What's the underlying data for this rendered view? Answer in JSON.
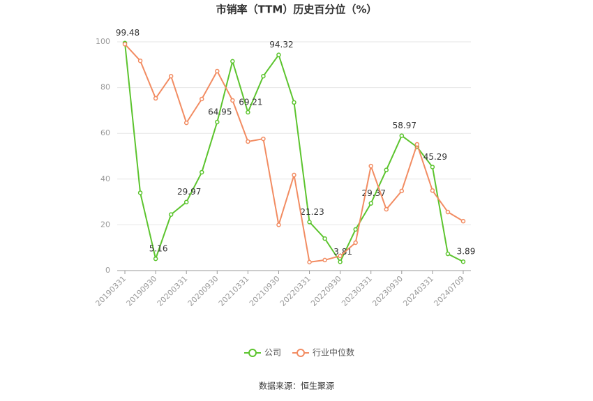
{
  "chart_data": {
    "type": "line",
    "title": "市销率（TTM）历史百分位（%）",
    "source": "数据来源：恒生聚源",
    "categories": [
      "20190331",
      null,
      "20190930",
      null,
      "20200331",
      null,
      "20200930",
      null,
      "20210331",
      null,
      "20210930",
      null,
      "20220331",
      null,
      "20220930",
      null,
      "20230331",
      null,
      "20230930",
      null,
      "20240331",
      null,
      "20240709"
    ],
    "series": [
      {
        "name": "公司",
        "color": "#5cc42e",
        "values": [
          99.48,
          34,
          5.16,
          24.5,
          29.97,
          43,
          64.95,
          91.5,
          69.21,
          85,
          94.32,
          73.5,
          21.23,
          14,
          3.81,
          18,
          29.37,
          44,
          58.97,
          54,
          45.29,
          7.3,
          3.89
        ],
        "value_labels": [
          "99.48",
          null,
          "5.16",
          null,
          "29.97",
          null,
          "64.95",
          null,
          "69.21",
          null,
          "94.32",
          null,
          "21.23",
          null,
          "3.81",
          null,
          "29.37",
          null,
          "58.97",
          null,
          "45.29",
          null,
          "3.89"
        ]
      },
      {
        "name": "行业中位数",
        "color": "#f28c62",
        "values": [
          99,
          91.7,
          75.3,
          85,
          64.6,
          75,
          87.2,
          74.4,
          56.4,
          57.6,
          20,
          41.8,
          3.7,
          4.6,
          6.4,
          12.2,
          45.7,
          26.8,
          34.8,
          55.2,
          35,
          25.6,
          21.6
        ]
      }
    ],
    "ylim": [
      0,
      100
    ],
    "yticks": [
      0,
      20,
      40,
      60,
      80,
      100
    ],
    "grid": true,
    "legend": "bottom"
  }
}
